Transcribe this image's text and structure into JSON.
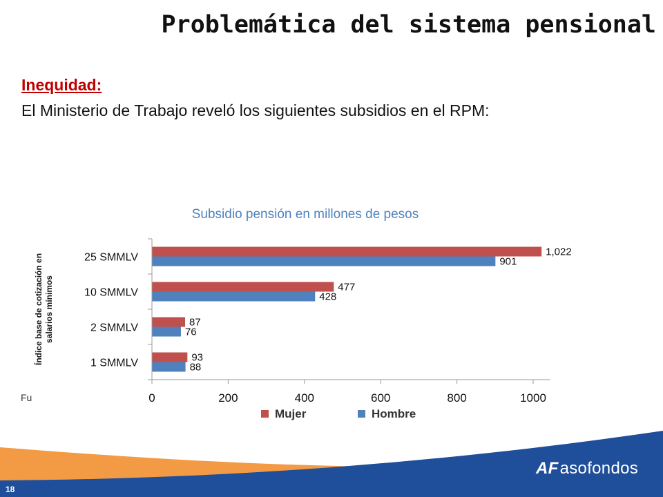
{
  "slide": {
    "title": "Problemática del sistema pensional",
    "subheading": "Inequidad:",
    "body": "El Ministerio de Trabajo reveló los siguientes subsidios en el RPM:",
    "source_fragment": "Fu",
    "page_number": "18",
    "logo_mark": "AF",
    "logo_text": "asofondos"
  },
  "colors": {
    "mujer": "#c0504d",
    "hombre": "#4f81bd",
    "title_blue": "#4f81bd",
    "accent_red": "#c00000",
    "band_blue": "#1f4e9a",
    "band_orange": "#f39a45"
  },
  "chart_data": {
    "type": "bar",
    "orientation": "horizontal",
    "title": "Subsidio pensión en millones de pesos",
    "ylabel": "Índice base de cotización en salarios mínimos",
    "xlabel": "",
    "categories": [
      "25 SMMLV",
      "10 SMMLV",
      "2 SMMLV",
      "1 SMMLV"
    ],
    "series": [
      {
        "name": "Mujer",
        "values": [
          1022,
          477,
          87,
          93
        ],
        "labels": [
          "1,022",
          "477",
          "87",
          "93"
        ]
      },
      {
        "name": "Hombre",
        "values": [
          901,
          428,
          76,
          88
        ],
        "labels": [
          "901",
          "428",
          "76",
          "88"
        ]
      }
    ],
    "xlim": [
      0,
      1000
    ],
    "xticks": [
      0,
      200,
      400,
      600,
      800,
      1000
    ],
    "legend": [
      "Mujer",
      "Hombre"
    ],
    "legend_position": "bottom",
    "grid": false
  }
}
